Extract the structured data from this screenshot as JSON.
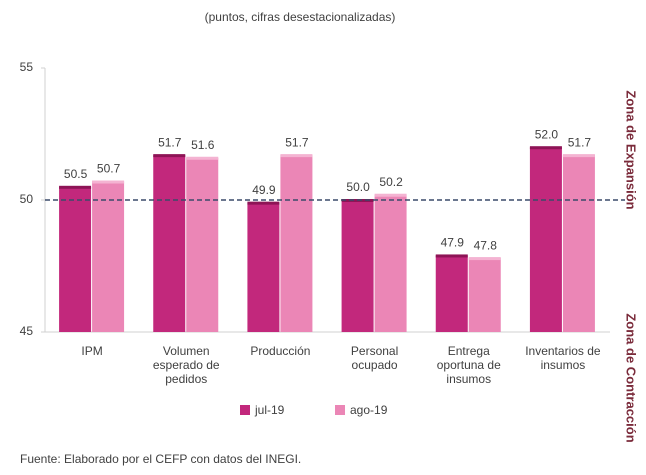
{
  "chart_data": {
    "type": "bar",
    "subtitle": "(puntos, cifras desestacionalizadas)",
    "categories": [
      "IPM",
      "Volumen esperado de pedidos",
      "Producción",
      "Personal ocupado",
      "Entrega oportuna de insumos",
      "Inventarios de insumos"
    ],
    "series": [
      {
        "name": "jul-19",
        "color": "#c2287c",
        "values": [
          50.5,
          51.7,
          49.9,
          50.0,
          47.9,
          52.0
        ],
        "value_labels": [
          "50.5",
          "51.7",
          "49.9",
          "50.0",
          "47.9",
          "52.0"
        ]
      },
      {
        "name": "ago-19",
        "color": "#eb86b6",
        "values": [
          50.7,
          51.6,
          51.7,
          50.2,
          47.8,
          51.7
        ],
        "value_labels": [
          "50.7",
          "51.6",
          "51.7",
          "50.2",
          "47.8",
          "51.7"
        ]
      }
    ],
    "ylim": [
      45,
      55
    ],
    "yticks": [
      45,
      50,
      55
    ],
    "reference_line": 50,
    "side_labels": [
      "Zona de Expansión",
      "Zona de Contracción"
    ],
    "legend": "bottom",
    "source": "Fuente: Elaborado por el CEFP con datos del INEGI."
  }
}
